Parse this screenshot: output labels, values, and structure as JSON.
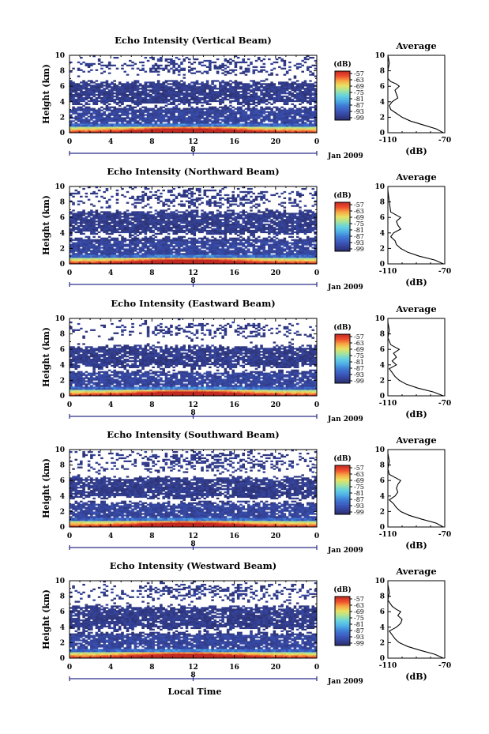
{
  "figure": {
    "bottom_xlabel": "Local Time",
    "colormap_stops": [
      "#2a2d6a",
      "#35449b",
      "#3b5bc0",
      "#3f7fd6",
      "#4fb1e6",
      "#66d2e0",
      "#a4e39d",
      "#e8e262",
      "#f7a844",
      "#ee4a2c",
      "#c0271f"
    ]
  },
  "chart_data": [
    {
      "type": "heatmap",
      "title": "Echo Intensity (Vertical Beam)",
      "ylabel": "Height (km)",
      "xticks": [
        "0",
        "4",
        "8",
        "12",
        "16",
        "20",
        "0"
      ],
      "yticks": [
        "0",
        "2",
        "4",
        "6",
        "8",
        "10"
      ],
      "x_range": [
        0,
        24
      ],
      "y_range": [
        0,
        10
      ],
      "date_marker": "8",
      "date_label": "Jan 2009",
      "colorbar": {
        "unit": "(dB)",
        "ticks": [
          "-57",
          "-63",
          "-69",
          "-75",
          "-81",
          "-87",
          "-93",
          "-99"
        ]
      },
      "cloud_layers": [
        {
          "from": 1.2,
          "to": 3.3
        },
        {
          "from": 3.8,
          "to": 6.6
        },
        {
          "from": 7.6,
          "to": 9.6
        }
      ],
      "average": {
        "title": "Average",
        "xlabel": "(dB)",
        "xticks": [
          "-110",
          "-70"
        ],
        "yticks": [
          "0",
          "2",
          "4",
          "6",
          "8",
          "10"
        ],
        "x_range": [
          -110,
          -70
        ],
        "profile": [
          [
            -71,
            0
          ],
          [
            -76,
            0.5
          ],
          [
            -85,
            1
          ],
          [
            -94,
            1.5
          ],
          [
            -100,
            2
          ],
          [
            -104,
            2.5
          ],
          [
            -108,
            3
          ],
          [
            -109,
            3.5
          ],
          [
            -107,
            4
          ],
          [
            -103,
            4.5
          ],
          [
            -104,
            5
          ],
          [
            -105,
            5.5
          ],
          [
            -102,
            6
          ],
          [
            -104,
            6.3
          ],
          [
            -108,
            6.6
          ],
          [
            -110,
            7
          ],
          [
            -110,
            8
          ],
          [
            -109,
            9
          ],
          [
            -110,
            10
          ]
        ]
      }
    },
    {
      "type": "heatmap",
      "title": "Echo Intensity (Northward Beam)",
      "ylabel": "Height (km)",
      "xticks": [
        "0",
        "4",
        "8",
        "12",
        "16",
        "20",
        "0"
      ],
      "yticks": [
        "0",
        "2",
        "4",
        "6",
        "8",
        "10"
      ],
      "x_range": [
        0,
        24
      ],
      "y_range": [
        0,
        10
      ],
      "date_marker": "8",
      "date_label": "Jan 2009",
      "colorbar": {
        "unit": "(dB)",
        "ticks": [
          "-57",
          "-63",
          "-69",
          "-75",
          "-81",
          "-87",
          "-93",
          "-99"
        ]
      },
      "cloud_layers": [
        {
          "from": 1.0,
          "to": 3.4
        },
        {
          "from": 3.9,
          "to": 6.8
        },
        {
          "from": 7.4,
          "to": 9.7
        }
      ],
      "average": {
        "title": "Average",
        "xlabel": "(dB)",
        "xticks": [
          "-110",
          "-70"
        ],
        "yticks": [
          "0",
          "2",
          "4",
          "6",
          "8",
          "10"
        ],
        "x_range": [
          -110,
          -70
        ],
        "profile": [
          [
            -71,
            0
          ],
          [
            -77,
            0.5
          ],
          [
            -88,
            1
          ],
          [
            -96,
            1.5
          ],
          [
            -101,
            2
          ],
          [
            -104,
            2.5
          ],
          [
            -105,
            3
          ],
          [
            -108,
            3.5
          ],
          [
            -106,
            4
          ],
          [
            -101,
            4.5
          ],
          [
            -103,
            5
          ],
          [
            -104,
            5.5
          ],
          [
            -101,
            6
          ],
          [
            -104,
            6.3
          ],
          [
            -108,
            6.7
          ],
          [
            -109,
            8
          ],
          [
            -110,
            9.5
          ]
        ]
      }
    },
    {
      "type": "heatmap",
      "title": "Echo Intensity (Eastward Beam)",
      "ylabel": "Height (km)",
      "xticks": [
        "0",
        "4",
        "8",
        "12",
        "16",
        "20",
        "0"
      ],
      "yticks": [
        "0",
        "2",
        "4",
        "6",
        "8",
        "10"
      ],
      "x_range": [
        0,
        24
      ],
      "y_range": [
        0,
        10
      ],
      "date_marker": "8",
      "date_label": "Jan 2009",
      "colorbar": {
        "unit": "(dB)",
        "ticks": [
          "-57",
          "-63",
          "-69",
          "-75",
          "-81",
          "-87",
          "-93",
          "-99"
        ]
      },
      "cloud_layers": [
        {
          "from": 1.1,
          "to": 3.2
        },
        {
          "from": 3.7,
          "to": 6.4
        },
        {
          "from": 7.8,
          "to": 9.3
        }
      ],
      "average": {
        "title": "Average",
        "xlabel": "(dB)",
        "xticks": [
          "-110",
          "-70"
        ],
        "yticks": [
          "0",
          "2",
          "4",
          "6",
          "8",
          "10"
        ],
        "x_range": [
          -110,
          -70
        ],
        "profile": [
          [
            -71,
            0
          ],
          [
            -78,
            0.5
          ],
          [
            -89,
            1
          ],
          [
            -97,
            1.5
          ],
          [
            -102,
            2
          ],
          [
            -105,
            2.5
          ],
          [
            -107,
            3
          ],
          [
            -109,
            3.5
          ],
          [
            -104,
            4
          ],
          [
            -107,
            4.5
          ],
          [
            -104,
            5
          ],
          [
            -106,
            5.5
          ],
          [
            -102,
            6
          ],
          [
            -105,
            6.3
          ],
          [
            -108,
            6.6
          ],
          [
            -110,
            7.5
          ],
          [
            -109,
            8.5
          ],
          [
            -110,
            9.5
          ]
        ]
      }
    },
    {
      "type": "heatmap",
      "title": "Echo Intensity (Southward Beam)",
      "ylabel": "Height (km)",
      "xticks": [
        "0",
        "4",
        "8",
        "12",
        "16",
        "20",
        "0"
      ],
      "yticks": [
        "0",
        "2",
        "4",
        "6",
        "8",
        "10"
      ],
      "x_range": [
        0,
        24
      ],
      "y_range": [
        0,
        10
      ],
      "date_marker": "8",
      "date_label": "Jan 2009",
      "colorbar": {
        "unit": "(dB)",
        "ticks": [
          "-57",
          "-63",
          "-69",
          "-75",
          "-81",
          "-87",
          "-93",
          "-99"
        ]
      },
      "cloud_layers": [
        {
          "from": 1.0,
          "to": 3.2
        },
        {
          "from": 3.8,
          "to": 6.4
        },
        {
          "from": 7.2,
          "to": 9.6
        }
      ],
      "average": {
        "title": "Average",
        "xlabel": "(dB)",
        "xticks": [
          "-110",
          "-70"
        ],
        "yticks": [
          "0",
          "2",
          "4",
          "6",
          "8",
          "10"
        ],
        "x_range": [
          -110,
          -70
        ],
        "profile": [
          [
            -71,
            0
          ],
          [
            -76,
            0.5
          ],
          [
            -86,
            1
          ],
          [
            -95,
            1.5
          ],
          [
            -101,
            2
          ],
          [
            -104,
            2.5
          ],
          [
            -106,
            3
          ],
          [
            -109,
            3.5
          ],
          [
            -105,
            4
          ],
          [
            -103,
            4.5
          ],
          [
            -104,
            5
          ],
          [
            -103,
            5.5
          ],
          [
            -101,
            6
          ],
          [
            -105,
            6.4
          ],
          [
            -109,
            6.8
          ],
          [
            -110,
            7.5
          ],
          [
            -109,
            8.5
          ],
          [
            -110,
            9.5
          ]
        ]
      }
    },
    {
      "type": "heatmap",
      "title": "Echo Intensity (Westward Beam)",
      "ylabel": "Height (km)",
      "xticks": [
        "0",
        "4",
        "8",
        "12",
        "16",
        "20",
        "0"
      ],
      "yticks": [
        "0",
        "2",
        "4",
        "6",
        "8",
        "10"
      ],
      "x_range": [
        0,
        24
      ],
      "y_range": [
        0,
        10
      ],
      "date_marker": "8",
      "date_label": "Jan 2009",
      "colorbar": {
        "unit": "(dB)",
        "ticks": [
          "-57",
          "-63",
          "-69",
          "-75",
          "-81",
          "-87",
          "-93",
          "-99"
        ]
      },
      "cloud_layers": [
        {
          "from": 1.1,
          "to": 3.3
        },
        {
          "from": 3.8,
          "to": 6.7
        },
        {
          "from": 7.5,
          "to": 9.5
        }
      ],
      "average": {
        "title": "Average",
        "xlabel": "(dB)",
        "xticks": [
          "-110",
          "-70"
        ],
        "yticks": [
          "0",
          "2",
          "4",
          "6",
          "8",
          "10"
        ],
        "x_range": [
          -110,
          -70
        ],
        "profile": [
          [
            -71,
            0
          ],
          [
            -77,
            0.5
          ],
          [
            -87,
            1
          ],
          [
            -96,
            1.5
          ],
          [
            -102,
            2
          ],
          [
            -105,
            2.5
          ],
          [
            -107,
            3
          ],
          [
            -109,
            3.5
          ],
          [
            -104,
            4
          ],
          [
            -101,
            4.5
          ],
          [
            -100,
            5
          ],
          [
            -103,
            5.5
          ],
          [
            -101,
            6
          ],
          [
            -104,
            6.3
          ],
          [
            -107,
            6.7
          ],
          [
            -110,
            7.5
          ],
          [
            -109,
            8.5
          ],
          [
            -110,
            9.5
          ]
        ]
      }
    }
  ]
}
